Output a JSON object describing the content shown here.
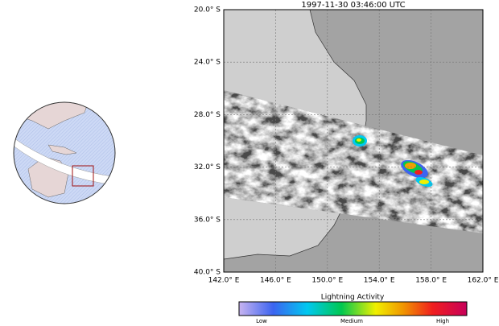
{
  "header": {
    "title": "1997-11-30    03:46:00 UTC"
  },
  "map": {
    "lat_labels": [
      "20.0° S",
      "24.0° S",
      "28.0° S",
      "32.0° S",
      "36.0° S",
      "40.0° S"
    ],
    "lon_labels": [
      "142.0° E",
      "146.0° E",
      "150.0° E",
      "154.0° E",
      "158.0° E",
      "162.0° E"
    ]
  },
  "legend": {
    "title": "Lightning Activity",
    "labels": [
      "Low",
      "Medium",
      "High"
    ]
  }
}
